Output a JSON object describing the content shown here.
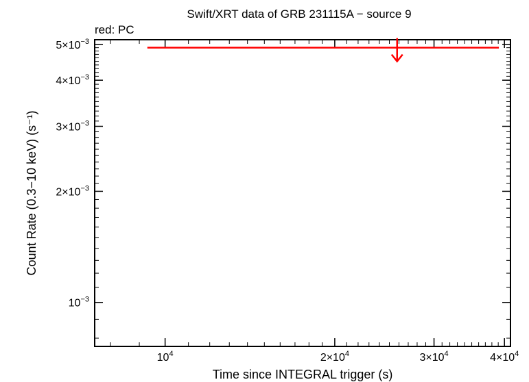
{
  "chart_data": {
    "type": "scatter",
    "title": "Swift/XRT data of GRB 231115A − source 9",
    "subtitle": "red: PC",
    "xlabel": "Time since INTEGRAL trigger (s)",
    "ylabel": "Count Rate (0.3−10 keV) (s⁻¹)",
    "xlim": [
      7500,
      41000
    ],
    "ylim": [
      0.00076,
      0.00515
    ],
    "x_scale": "log",
    "y_scale": "log",
    "grid": false,
    "x_ticks": [
      {
        "value": 10000,
        "mantissa": "",
        "exp": "4"
      },
      {
        "value": 20000,
        "mantissa": "2×",
        "exp": "4"
      },
      {
        "value": 30000,
        "mantissa": "3×",
        "exp": "4"
      },
      {
        "value": 40000,
        "mantissa": "4×",
        "exp": "4"
      }
    ],
    "y_ticks": [
      {
        "value": 0.001,
        "mantissa": "",
        "exp": "−3"
      },
      {
        "value": 0.002,
        "mantissa": "2×",
        "exp": "−3"
      },
      {
        "value": 0.003,
        "mantissa": "3×",
        "exp": "−3"
      },
      {
        "value": 0.004,
        "mantissa": "4×",
        "exp": "−3"
      },
      {
        "value": 0.005,
        "mantissa": "5×",
        "exp": "−3"
      }
    ],
    "series": [
      {
        "mode": "PC",
        "color": "#ff0000",
        "upper_limits": [
          {
            "x": 25800,
            "x_low": 9300,
            "x_high": 39100,
            "y": 0.0049
          }
        ]
      }
    ]
  }
}
